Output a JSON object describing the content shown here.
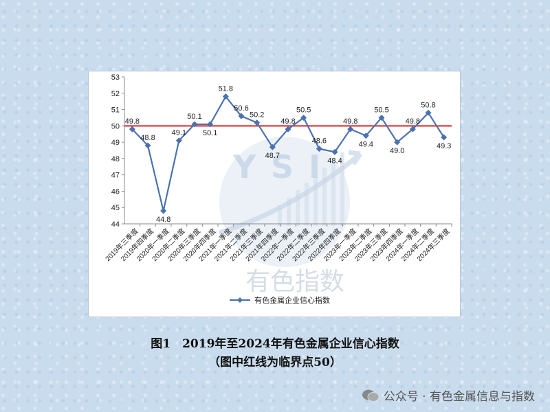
{
  "chart_data": {
    "type": "line",
    "categories": [
      "2019年三季度",
      "2019年四季度",
      "2020年一季度",
      "2020年二季度",
      "2020年三季度",
      "2020年四季度",
      "2021年一季度",
      "2021年二季度",
      "2021年三季度",
      "2021年四季度",
      "2022年一季度",
      "2022年二季度",
      "2022年三季度",
      "2022年四季度",
      "2023年一季度",
      "2023年二季度",
      "2023年三季度",
      "2023年四季度",
      "2024年一季度",
      "2024年二季度",
      "2024年三季度"
    ],
    "series": [
      {
        "name": "有色金属企业信心指数",
        "values": [
          49.8,
          48.8,
          44.8,
          49.1,
          50.1,
          50.1,
          51.8,
          50.6,
          50.2,
          48.7,
          49.8,
          50.5,
          48.6,
          48.4,
          49.8,
          49.4,
          50.5,
          49.0,
          49.8,
          50.8,
          49.3
        ],
        "labels": [
          "49.8",
          "48.8",
          "44.8",
          "49.1",
          "50.1",
          "50.1",
          "51.8",
          "50.6",
          "50.2",
          "48.7",
          "49.8",
          "50.5",
          "48.6",
          "48.4",
          "49.8",
          "49.4",
          "50.5",
          "49.0",
          "49.8",
          "50.8",
          "49.3"
        ],
        "color": "#4a72b0"
      }
    ],
    "ylim": [
      44,
      53
    ],
    "yticks": [
      "44",
      "45",
      "46",
      "47",
      "48",
      "49",
      "50",
      "51",
      "52",
      "53"
    ],
    "reference_line": {
      "value": 50,
      "color": "#e02020"
    },
    "legend_position": "bottom",
    "watermark": {
      "letters": [
        "Y",
        "S",
        "I"
      ],
      "text": "有色指数"
    }
  },
  "caption": {
    "title": "图1　2019年至2024年有色金属企业信心指数",
    "note": "（图中红线为临界点50）"
  },
  "footer": {
    "text": "公众号 · 有色金属信息与指数"
  }
}
